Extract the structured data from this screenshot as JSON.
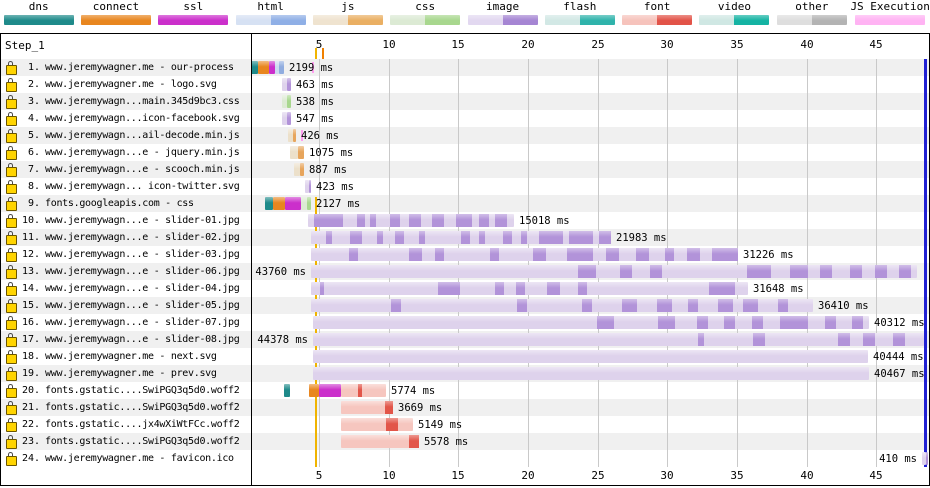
{
  "legend": {
    "items": [
      {
        "label": "dns",
        "colors": [
          "#1e8a8a"
        ]
      },
      {
        "label": "connect",
        "colors": [
          "#e8861f"
        ]
      },
      {
        "label": "ssl",
        "colors": [
          "#cb2fcb"
        ]
      },
      {
        "label": "html",
        "colors": [
          "#d6e1f3",
          "#8fafe6"
        ]
      },
      {
        "label": "js",
        "colors": [
          "#efe3cf",
          "#eaaf63"
        ]
      },
      {
        "label": "css",
        "colors": [
          "#dcead4",
          "#a8d78e"
        ]
      },
      {
        "label": "image",
        "colors": [
          "#e2d8f0",
          "#a585d3"
        ]
      },
      {
        "label": "flash",
        "colors": [
          "#d2e8e5",
          "#2fb3ab"
        ]
      },
      {
        "label": "font",
        "colors": [
          "#f6c3bc",
          "#e25348"
        ]
      },
      {
        "label": "video",
        "colors": [
          "#cfe7e3",
          "#14b3a3"
        ]
      },
      {
        "label": "other",
        "colors": [
          "#dedede",
          "#b3b3b3"
        ]
      },
      {
        "label": "JS Execution",
        "colors": [
          "#ffb3f3"
        ]
      }
    ]
  },
  "step_label": "Step_1",
  "axis": {
    "ticks_s": [
      5,
      10,
      15,
      20,
      25,
      30,
      35,
      40,
      45
    ]
  },
  "markers": {
    "start_render_s": 4.75,
    "first_paint_s": 5.05,
    "doc_complete_s": 48.45,
    "start_render_color": "#f0b400",
    "first_paint_color": "#f08000",
    "doc_complete_color": "#2121d3"
  },
  "phase_colors": {
    "dns": "#1e8a8a",
    "connect": "#e8861f",
    "ssl": "#cb2fcb",
    "html_wait": "#ccdaf0",
    "html_dl": "#90acdf",
    "js_wait": "#ece0ca",
    "js_dl": "#e7a55c",
    "css_wait": "#dcead3",
    "css_dl": "#a8d78e",
    "image_wait": "#ded2ec",
    "image_dl": "#b293d9",
    "font_wait": "#f6c6bf",
    "font_dl": "#e25549",
    "js_exec": "#ff9df0"
  },
  "chart_data": {
    "type": "waterfall",
    "time_unit": "s",
    "x_range_s": [
      0,
      49
    ],
    "rows": [
      {
        "num": "1",
        "url": "www.jeremywagner.me - our-process",
        "ms": 2199,
        "label": "2199 ms",
        "label_side": "right",
        "js_exec_at": 4.5,
        "segments": [
          {
            "phase": "dns",
            "start": 0.0,
            "end": 0.62
          },
          {
            "phase": "connect",
            "start": 0.62,
            "end": 1.41
          },
          {
            "phase": "ssl",
            "start": 1.41,
            "end": 1.84
          },
          {
            "phase": "html_wait",
            "start": 1.84,
            "end": 2.13
          },
          {
            "phase": "html_dl",
            "start": 2.13,
            "end": 2.49
          }
        ]
      },
      {
        "num": "2",
        "url": "www.jeremywagner.me - logo.svg",
        "ms": 463,
        "label": "463 ms",
        "label_side": "right",
        "segments": [
          {
            "phase": "image_wait",
            "start": 2.35,
            "end": 2.71
          },
          {
            "phase": "image_dl",
            "start": 2.71,
            "end": 2.99
          }
        ]
      },
      {
        "num": "3",
        "url": "www.jeremywagn...main.345d9bc3.css",
        "ms": 538,
        "label": "538 ms",
        "label_side": "right",
        "segments": [
          {
            "phase": "css_wait",
            "start": 2.35,
            "end": 2.71
          },
          {
            "phase": "css_dl",
            "start": 2.71,
            "end": 2.99
          }
        ]
      },
      {
        "num": "4",
        "url": "www.jeremywagn...icon-facebook.svg",
        "ms": 547,
        "label": "547 ms",
        "label_side": "right",
        "segments": [
          {
            "phase": "image_wait",
            "start": 2.35,
            "end": 2.71
          },
          {
            "phase": "image_dl",
            "start": 2.71,
            "end": 2.99
          }
        ]
      },
      {
        "num": "5",
        "url": "www.jeremywagn...ail-decode.min.js",
        "ms": 426,
        "label": "426 ms",
        "label_side": "right",
        "js_exec_at": 3.7,
        "segments": [
          {
            "phase": "js_wait",
            "start": 2.78,
            "end": 3.14
          },
          {
            "phase": "js_dl",
            "start": 3.14,
            "end": 3.35
          }
        ]
      },
      {
        "num": "6",
        "url": "www.jeremywagn...e - jquery.min.js",
        "ms": 1075,
        "label": "1075 ms",
        "label_side": "right",
        "segments": [
          {
            "phase": "js_wait",
            "start": 2.92,
            "end": 3.5
          },
          {
            "phase": "js_dl",
            "start": 3.5,
            "end": 3.93
          }
        ]
      },
      {
        "num": "7",
        "url": "www.jeremywagn...e - scooch.min.js",
        "ms": 887,
        "label": "887 ms",
        "label_side": "right",
        "segments": [
          {
            "phase": "js_wait",
            "start": 3.2,
            "end": 3.64
          },
          {
            "phase": "js_dl",
            "start": 3.64,
            "end": 3.93
          }
        ]
      },
      {
        "num": "8",
        "url": "www.jeremywagn... icon-twitter.svg",
        "ms": 423,
        "label": "423 ms",
        "label_side": "right",
        "segments": [
          {
            "phase": "image_wait",
            "start": 4.0,
            "end": 4.29
          },
          {
            "phase": "image_dl",
            "start": 4.29,
            "end": 4.44
          }
        ]
      },
      {
        "num": "9",
        "url": "fonts.googleapis.com - css",
        "ms": 2127,
        "label": "2127 ms",
        "label_side": "right",
        "segments": [
          {
            "phase": "dns",
            "start": 1.13,
            "end": 1.7
          },
          {
            "phase": "connect",
            "start": 1.7,
            "end": 2.56
          },
          {
            "phase": "ssl",
            "start": 2.56,
            "end": 3.71
          },
          {
            "phase": "css_wait",
            "start": 3.71,
            "end": 4.14
          },
          {
            "phase": "css_dl",
            "start": 4.14,
            "end": 4.43
          }
        ]
      },
      {
        "num": "10",
        "url": "www.jeremywagn...e - slider-01.jpg",
        "ms": 15018,
        "label": "15018 ms",
        "label_side": "right",
        "segments": [
          {
            "phase": "image_wait",
            "start": 4.2,
            "end": 19.0,
            "chunks": [
              [
                0.03,
                0.17
              ],
              [
                0.24,
                0.28
              ],
              [
                0.3,
                0.33
              ],
              [
                0.4,
                0.45
              ],
              [
                0.49,
                0.55
              ],
              [
                0.6,
                0.66
              ],
              [
                0.72,
                0.8
              ],
              [
                0.83,
                0.88
              ],
              [
                0.91,
                0.97
              ]
            ]
          }
        ]
      },
      {
        "num": "11",
        "url": "www.jeremywagn...e - slider-02.jpg",
        "ms": 21983,
        "label": "21983 ms",
        "label_side": "right",
        "segments": [
          {
            "phase": "image_wait",
            "start": 4.45,
            "end": 26.0,
            "chunks": [
              [
                0.05,
                0.07
              ],
              [
                0.13,
                0.17
              ],
              [
                0.22,
                0.24
              ],
              [
                0.28,
                0.31
              ],
              [
                0.36,
                0.38
              ],
              [
                0.5,
                0.53
              ],
              [
                0.56,
                0.58
              ],
              [
                0.64,
                0.67
              ],
              [
                0.7,
                0.72
              ],
              [
                0.76,
                0.84
              ],
              [
                0.86,
                0.94
              ],
              [
                0.96,
                1.0
              ]
            ]
          }
        ]
      },
      {
        "num": "12",
        "url": "www.jeremywagn...e - slider-03.jpg",
        "ms": 31226,
        "label": "31226 ms",
        "label_side": "right",
        "segments": [
          {
            "phase": "image_wait",
            "start": 4.45,
            "end": 35.1,
            "chunks": [
              [
                0.09,
                0.11
              ],
              [
                0.23,
                0.26
              ],
              [
                0.29,
                0.31
              ],
              [
                0.42,
                0.44
              ],
              [
                0.52,
                0.55
              ],
              [
                0.6,
                0.66
              ],
              [
                0.69,
                0.72
              ],
              [
                0.76,
                0.79
              ],
              [
                0.83,
                0.85
              ],
              [
                0.88,
                0.91
              ],
              [
                0.94,
                1.0
              ]
            ]
          }
        ]
      },
      {
        "num": "13",
        "url": "www.jeremywagn...e - slider-06.jpg",
        "ms": 43760,
        "label": "43760 ms",
        "label_side": "left",
        "segments": [
          {
            "phase": "image_wait",
            "start": 4.45,
            "end": 47.9,
            "chunks": [
              [
                0.44,
                0.47
              ],
              [
                0.51,
                0.53
              ],
              [
                0.56,
                0.58
              ],
              [
                0.72,
                0.76
              ],
              [
                0.79,
                0.82
              ],
              [
                0.84,
                0.86
              ],
              [
                0.89,
                0.91
              ],
              [
                0.93,
                0.95
              ],
              [
                0.97,
                0.99
              ]
            ]
          }
        ]
      },
      {
        "num": "14",
        "url": "www.jeremywagn...e - slider-04.jpg",
        "ms": 31648,
        "label": "31648 ms",
        "label_side": "right",
        "segments": [
          {
            "phase": "image_wait",
            "start": 4.45,
            "end": 35.8,
            "chunks": [
              [
                0.02,
                0.03
              ],
              [
                0.29,
                0.34
              ],
              [
                0.42,
                0.44
              ],
              [
                0.47,
                0.49
              ],
              [
                0.54,
                0.57
              ],
              [
                0.61,
                0.63
              ],
              [
                0.91,
                0.97
              ]
            ]
          }
        ]
      },
      {
        "num": "15",
        "url": "www.jeremywagn...e - slider-05.jpg",
        "ms": 36410,
        "label": "36410 ms",
        "label_side": "right",
        "segments": [
          {
            "phase": "image_wait",
            "start": 4.45,
            "end": 40.5,
            "chunks": [
              [
                0.16,
                0.18
              ],
              [
                0.41,
                0.43
              ],
              [
                0.54,
                0.56
              ],
              [
                0.62,
                0.65
              ],
              [
                0.69,
                0.72
              ],
              [
                0.75,
                0.77
              ],
              [
                0.81,
                0.84
              ],
              [
                0.86,
                0.89
              ],
              [
                0.93,
                0.95
              ]
            ]
          }
        ]
      },
      {
        "num": "16",
        "url": "www.jeremywagn...e - slider-07.jpg",
        "ms": 40312,
        "label": "40312 ms",
        "label_side": "right",
        "segments": [
          {
            "phase": "image_wait",
            "start": 4.6,
            "end": 44.5,
            "chunks": [
              [
                0.51,
                0.54
              ],
              [
                0.62,
                0.65
              ],
              [
                0.69,
                0.71
              ],
              [
                0.74,
                0.76
              ],
              [
                0.79,
                0.81
              ],
              [
                0.84,
                0.89
              ],
              [
                0.92,
                0.94
              ],
              [
                0.97,
                0.99
              ]
            ]
          }
        ]
      },
      {
        "num": "17",
        "url": "www.jeremywagn...e - slider-08.jpg",
        "ms": 44378,
        "label": "44378 ms",
        "label_side": "left",
        "segments": [
          {
            "phase": "image_wait",
            "start": 4.6,
            "end": 48.4,
            "chunks": [
              [
                0.63,
                0.64
              ],
              [
                0.72,
                0.74
              ],
              [
                0.86,
                0.88
              ],
              [
                0.9,
                0.92
              ],
              [
                0.95,
                0.97
              ]
            ]
          }
        ]
      },
      {
        "num": "18",
        "url": "www.jeremywagner.me - next.svg",
        "ms": 40444,
        "label": "40444 ms",
        "label_side": "right",
        "segments": [
          {
            "phase": "image_wait",
            "start": 4.6,
            "end": 44.45
          }
        ]
      },
      {
        "num": "19",
        "url": "www.jeremywagner.me - prev.svg",
        "ms": 40467,
        "label": "40467 ms",
        "label_side": "right",
        "segments": [
          {
            "phase": "image_wait",
            "start": 4.6,
            "end": 44.47
          }
        ]
      },
      {
        "num": "20",
        "url": "fonts.gstatic....SwiPGQ3q5d0.woff2",
        "ms": 5774,
        "label": "5774 ms",
        "label_side": "right",
        "segments": [
          {
            "phase": "dns",
            "start": 2.46,
            "end": 2.9
          },
          {
            "phase": "connect",
            "start": 4.3,
            "end": 5.02
          },
          {
            "phase": "ssl",
            "start": 5.02,
            "end": 6.6
          },
          {
            "phase": "font_wait",
            "start": 6.6,
            "end": 9.83,
            "chunks": [
              [
                0.37,
                0.47
              ]
            ]
          }
        ]
      },
      {
        "num": "21",
        "url": "fonts.gstatic....SwiPGQ3q5d0.woff2",
        "ms": 3669,
        "label": "3669 ms",
        "label_side": "right",
        "segments": [
          {
            "phase": "font_wait",
            "start": 6.6,
            "end": 10.3,
            "chunks": [
              [
                0.84,
                1.0
              ]
            ]
          }
        ]
      },
      {
        "num": "22",
        "url": "fonts.gstatic....jx4wXiWtFCc.woff2",
        "ms": 5149,
        "label": "5149 ms",
        "label_side": "right",
        "segments": [
          {
            "phase": "font_wait",
            "start": 6.6,
            "end": 11.75,
            "chunks": [
              [
                0.63,
                0.79
              ]
            ]
          }
        ]
      },
      {
        "num": "23",
        "url": "fonts.gstatic....SwiPGQ3q5d0.woff2",
        "ms": 5578,
        "label": "5578 ms",
        "label_side": "right",
        "segments": [
          {
            "phase": "font_wait",
            "start": 6.6,
            "end": 12.2,
            "chunks": [
              [
                0.87,
                1.0
              ]
            ]
          }
        ]
      },
      {
        "num": "24",
        "url": "www.jeremywagner.me - favicon.ico",
        "ms": 410,
        "label": "410 ms",
        "label_side": "left",
        "segments": [
          {
            "phase": "image_wait",
            "start": 48.3,
            "end": 48.55
          },
          {
            "phase": "image_dl",
            "start": 48.55,
            "end": 48.7
          }
        ]
      }
    ]
  }
}
